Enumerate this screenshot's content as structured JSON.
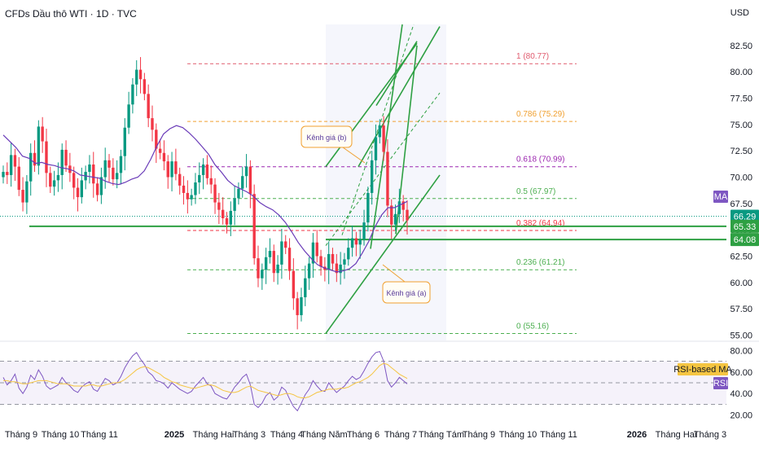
{
  "header": {
    "title": "CFDs Dầu thô WTI · 1D · TVC",
    "currency": "USD"
  },
  "colors": {
    "bull": "#089981",
    "bear": "#f23645",
    "ma": "#6a3bb8",
    "rsi": "#7e57c2",
    "rsi_ma": "#f5c542",
    "channel": "#2ea043",
    "fib_1": "#e05c6f",
    "fib_0786": "#f0a030",
    "fib_0618": "#9c27b0",
    "fib_05": "#4caf50",
    "fib_0382": "#f23645",
    "fib_0236": "#4caf50",
    "fib_0": "#4caf50"
  },
  "chart_data": [
    {
      "type": "candlestick",
      "name": "price",
      "y_axis_ticks": [
        "82.50",
        "80.00",
        "77.50",
        "75.00",
        "72.50",
        "70.00",
        "67.50",
        "65.00",
        "62.50",
        "60.00",
        "57.50",
        "55.00"
      ],
      "ylim": [
        54.5,
        84.5
      ],
      "x_axis_labels": [
        "Tháng 9",
        "Tháng 10",
        "Tháng 11",
        "2025",
        "Tháng Hai",
        "Tháng 3",
        "Tháng 4",
        "Tháng Năm",
        "Tháng 6",
        "Tháng 7",
        "Tháng Tám",
        "Tháng 9",
        "Tháng 10",
        "Tháng 11",
        "2026",
        "Tháng Hai",
        "Tháng 3"
      ],
      "close_path": [
        70.5,
        70.2,
        72.1,
        71.0,
        68.8,
        67.6,
        69.6,
        72.3,
        71.1,
        74.8,
        73.4,
        70.4,
        69.1,
        69.7,
        70.2,
        72.6,
        71.1,
        70.4,
        69.0,
        68.1,
        69.7,
        70.5,
        71.2,
        69.4,
        68.3,
        70.0,
        71.6,
        70.9,
        69.8,
        70.4,
        72.0,
        74.7,
        76.9,
        78.8,
        80.2,
        79.3,
        77.9,
        75.6,
        74.5,
        72.7,
        72.3,
        71.5,
        70.0,
        71.5,
        70.3,
        69.2,
        68.5,
        67.9,
        68.3,
        69.5,
        70.2,
        71.2,
        69.9,
        69.3,
        67.6,
        66.9,
        66.1,
        65.5,
        66.8,
        68.0,
        68.9,
        70.1,
        71.0,
        68.4,
        62.3,
        60.4,
        61.2,
        62.4,
        63.0,
        60.9,
        61.7,
        63.9,
        63.3,
        61.1,
        58.5,
        56.9,
        58.6,
        60.4,
        61.8,
        63.8,
        62.5,
        61.5,
        61.2,
        62.7,
        61.8,
        60.9,
        61.7,
        62.2,
        63.3,
        64.2,
        63.6,
        64.1,
        65.7,
        68.5,
        71.6,
        73.8,
        74.9,
        72.4,
        67.3,
        65.5,
        66.5,
        67.7,
        66.9,
        65.9
      ],
      "ma_values": [
        74.0,
        73.4,
        72.8,
        72.0,
        71.8,
        71.3,
        71.4,
        71.2,
        71.1,
        70.9,
        70.8,
        70.6,
        70.2,
        70.1,
        70.0,
        69.9,
        69.6,
        69.4,
        69.3,
        69.5,
        69.8,
        70.0,
        70.6,
        71.7,
        73.0,
        74.1,
        74.6,
        74.9,
        74.7,
        74.2,
        73.6,
        72.9,
        72.2,
        71.2,
        70.5,
        69.7,
        69.2,
        68.9,
        68.6,
        68.2,
        67.6,
        67.2,
        66.9,
        66.4,
        65.7,
        64.8,
        63.8,
        63.0,
        62.3,
        61.7,
        61.4,
        61.2,
        61.0,
        61.1,
        61.3,
        61.8,
        62.8,
        63.9,
        65.3,
        66.4,
        67.1,
        67.1,
        67.4,
        67.7
      ],
      "price_labels": [
        {
          "value": "66.29",
          "color": "#089981"
        },
        {
          "value": "65.33",
          "color": "#2ea043"
        },
        {
          "value": "64.08",
          "color": "#2ea043"
        }
      ],
      "ma_label": "MA",
      "fib_levels": [
        {
          "label": "1 (80.77)",
          "value": 80.77,
          "color": "#e05c6f"
        },
        {
          "label": "0.786 (75.29)",
          "value": 75.29,
          "color": "#f0a030"
        },
        {
          "label": "0.618 (70.99)",
          "value": 70.99,
          "color": "#9c27b0"
        },
        {
          "label": "0.5 (67.97)",
          "value": 67.97,
          "color": "#4caf50"
        },
        {
          "label": "0.382 (64.94)",
          "value": 64.94,
          "color": "#f23645"
        },
        {
          "label": "0.236 (61.21)",
          "value": 61.21,
          "color": "#4caf50"
        },
        {
          "label": "0 (55.16)",
          "value": 55.16,
          "color": "#4caf50"
        }
      ],
      "support_lines": [
        65.33,
        64.08
      ],
      "annotations": [
        "Kênh giá (b)",
        "Kênh giá (a)"
      ]
    },
    {
      "type": "line",
      "name": "rsi",
      "y_axis_ticks": [
        "80.00",
        "60.00",
        "40.00",
        "20.00"
      ],
      "ylim": [
        16,
        84
      ],
      "bands": [
        70,
        50,
        30
      ],
      "rsi_values": [
        55,
        48,
        52,
        58,
        45,
        40,
        46,
        57,
        53,
        62,
        56,
        47,
        44,
        46,
        48,
        55,
        50,
        47,
        43,
        41,
        46,
        49,
        51,
        44,
        42,
        48,
        54,
        52,
        48,
        50,
        56,
        64,
        70,
        75,
        78,
        72,
        67,
        60,
        57,
        52,
        51,
        49,
        45,
        50,
        47,
        44,
        42,
        40,
        42,
        47,
        51,
        55,
        49,
        47,
        40,
        38,
        36,
        35,
        40,
        46,
        50,
        55,
        58,
        48,
        30,
        27,
        31,
        38,
        41,
        34,
        37,
        46,
        43,
        35,
        28,
        24,
        31,
        39,
        44,
        52,
        47,
        43,
        42,
        50,
        45,
        41,
        44,
        47,
        52,
        56,
        53,
        55,
        61,
        68,
        74,
        78,
        79,
        70,
        52,
        46,
        50,
        55,
        52,
        49
      ],
      "rsi_ma_values": [
        52,
        52,
        51,
        51,
        50,
        49,
        49,
        50,
        51,
        52,
        52,
        52,
        51,
        50,
        49,
        49,
        49,
        48,
        47,
        47,
        47,
        47,
        48,
        48,
        47,
        47,
        48,
        49,
        50,
        50,
        51,
        53,
        56,
        59,
        62,
        64,
        65,
        64,
        62,
        60,
        58,
        55,
        53,
        51,
        50,
        48,
        47,
        46,
        45,
        45,
        46,
        47,
        48,
        48,
        47,
        45,
        43,
        42,
        41,
        41,
        42,
        44,
        46,
        47,
        45,
        43,
        42,
        41,
        40,
        39,
        38,
        39,
        40,
        40,
        39,
        37,
        36,
        36,
        37,
        39,
        41,
        42,
        43,
        44,
        44,
        44,
        45,
        45,
        46,
        48,
        50,
        51,
        53,
        55,
        58,
        62,
        66,
        68,
        67,
        64,
        61,
        58,
        56,
        54
      ],
      "labels": [
        "RSI-based MA",
        "RSI"
      ]
    }
  ]
}
